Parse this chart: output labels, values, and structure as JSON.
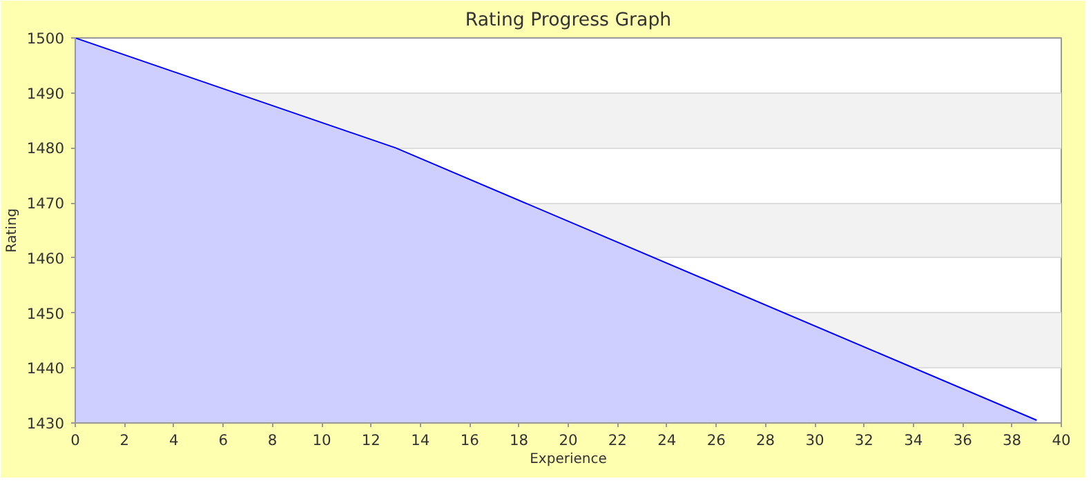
{
  "chart_data": {
    "type": "area",
    "title": "Rating Progress Graph",
    "xlabel": "Experience",
    "ylabel": "Rating",
    "x": [
      0,
      13,
      39
    ],
    "series": [
      {
        "color": "#0000ff",
        "values": [
          1500,
          1480,
          1430.5
        ]
      }
    ],
    "xlim": [
      0,
      40
    ],
    "ylim": [
      1430,
      1500
    ],
    "xticks": [
      0,
      2,
      4,
      6,
      8,
      10,
      12,
      14,
      16,
      18,
      20,
      22,
      24,
      26,
      28,
      30,
      32,
      34,
      36,
      38,
      40
    ],
    "yticks": [
      1430,
      1440,
      1450,
      1460,
      1470,
      1480,
      1490,
      1500
    ],
    "grid": "y"
  }
}
